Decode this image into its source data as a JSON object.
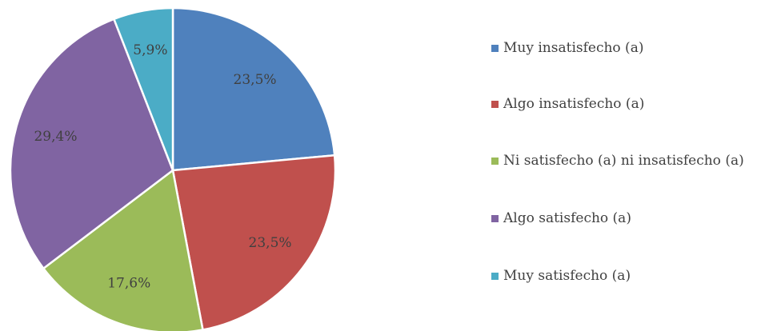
{
  "chart_data": {
    "type": "pie",
    "categories": [
      "Muy insatisfecho (a)",
      "Algo insatisfecho (a)",
      "Ni satisfecho (a) ni insatisfecho (a)",
      "Algo satisfecho (a)",
      "Muy satisfecho (a)"
    ],
    "values": [
      23.5,
      23.5,
      17.6,
      29.4,
      5.9
    ],
    "value_labels": [
      "23,5%",
      "23,5%",
      "17,6%",
      "29,4%",
      "5,9%"
    ],
    "colors": [
      "#4f81bd",
      "#c0504d",
      "#9bbb59",
      "#8064a2",
      "#4bacc6"
    ],
    "legend": "right"
  }
}
